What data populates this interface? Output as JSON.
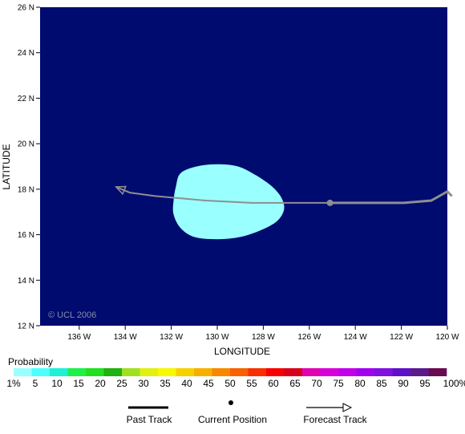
{
  "map": {
    "xlabel": "LONGITUDE",
    "ylabel": "LATITUDE",
    "copyright": "© UCL 2006",
    "lon_range": [
      -137.7,
      -120.0
    ],
    "lat_range": [
      12,
      26
    ],
    "lat_ticks": [
      {
        "value": 12,
        "label": "12 N"
      },
      {
        "value": 14,
        "label": "14 N"
      },
      {
        "value": 16,
        "label": "16 N"
      },
      {
        "value": 18,
        "label": "18 N"
      },
      {
        "value": 20,
        "label": "20 N"
      },
      {
        "value": 22,
        "label": "22 N"
      },
      {
        "value": 24,
        "label": "24 N"
      },
      {
        "value": 26,
        "label": "26 N"
      }
    ],
    "lon_ticks": [
      {
        "value": -136,
        "label": "136 W"
      },
      {
        "value": -134,
        "label": "134 W"
      },
      {
        "value": -132,
        "label": "132 W"
      },
      {
        "value": -130,
        "label": "130 W"
      },
      {
        "value": -128,
        "label": "128 W"
      },
      {
        "value": -126,
        "label": "126 W"
      },
      {
        "value": -124,
        "label": "124 W"
      },
      {
        "value": -122,
        "label": "122 W"
      },
      {
        "value": -120,
        "label": "120 W"
      }
    ],
    "colors": {
      "ocean": "#000b70",
      "probability_area": "#99ffff",
      "track": "#8f8f8f",
      "copyright": "#8a8fa3"
    },
    "probability_area": {
      "level": "1%",
      "outline": [
        [
          -131.6,
          18.7
        ],
        [
          -130.9,
          19.0
        ],
        [
          -130.0,
          19.1
        ],
        [
          -129.1,
          19.0
        ],
        [
          -128.3,
          18.6
        ],
        [
          -127.6,
          18.1
        ],
        [
          -127.2,
          17.6
        ],
        [
          -127.1,
          17.1
        ],
        [
          -127.4,
          16.6
        ],
        [
          -128.1,
          16.2
        ],
        [
          -129.0,
          15.9
        ],
        [
          -130.0,
          15.8
        ],
        [
          -131.0,
          15.9
        ],
        [
          -131.6,
          16.3
        ],
        [
          -131.9,
          16.9
        ],
        [
          -131.9,
          17.5
        ],
        [
          -131.8,
          18.1
        ]
      ]
    },
    "past_track": [
      [
        -119.8,
        17.7
      ],
      [
        -120.0,
        17.9
      ],
      [
        -120.7,
        17.5
      ],
      [
        -121.9,
        17.4
      ],
      [
        -123.5,
        17.4
      ],
      [
        -125.1,
        17.4
      ]
    ],
    "current_position": [
      -125.1,
      17.4
    ],
    "forecast_track": [
      [
        -125.1,
        17.4
      ],
      [
        -127.2,
        17.4
      ],
      [
        -128.5,
        17.4
      ],
      [
        -130.5,
        17.5
      ],
      [
        -132.7,
        17.7
      ],
      [
        -133.8,
        17.85
      ],
      [
        -134.4,
        18.1
      ]
    ]
  },
  "legend": {
    "title": "Probability",
    "colors": [
      "#99ffff",
      "#4dffff",
      "#1ff0d6",
      "#1ef04a",
      "#20e020",
      "#20b010",
      "#a0e020",
      "#e0f010",
      "#f8f800",
      "#f8d000",
      "#f8b000",
      "#f88800",
      "#f86000",
      "#f83000",
      "#f80000",
      "#d8001a",
      "#e000b0",
      "#d800d8",
      "#c000e8",
      "#a000f0",
      "#8010e0",
      "#6010c8",
      "#5a1a8c",
      "#6a0a50"
    ],
    "labels": [
      "1%",
      "5",
      "10",
      "15",
      "20",
      "25",
      "30",
      "35",
      "40",
      "45",
      "50",
      "55",
      "60",
      "65",
      "70",
      "75",
      "80",
      "85",
      "90",
      "95",
      "100%"
    ],
    "past_track_label": "Past Track",
    "current_position_label": "Current Position",
    "forecast_track_label": "Forecast Track"
  }
}
